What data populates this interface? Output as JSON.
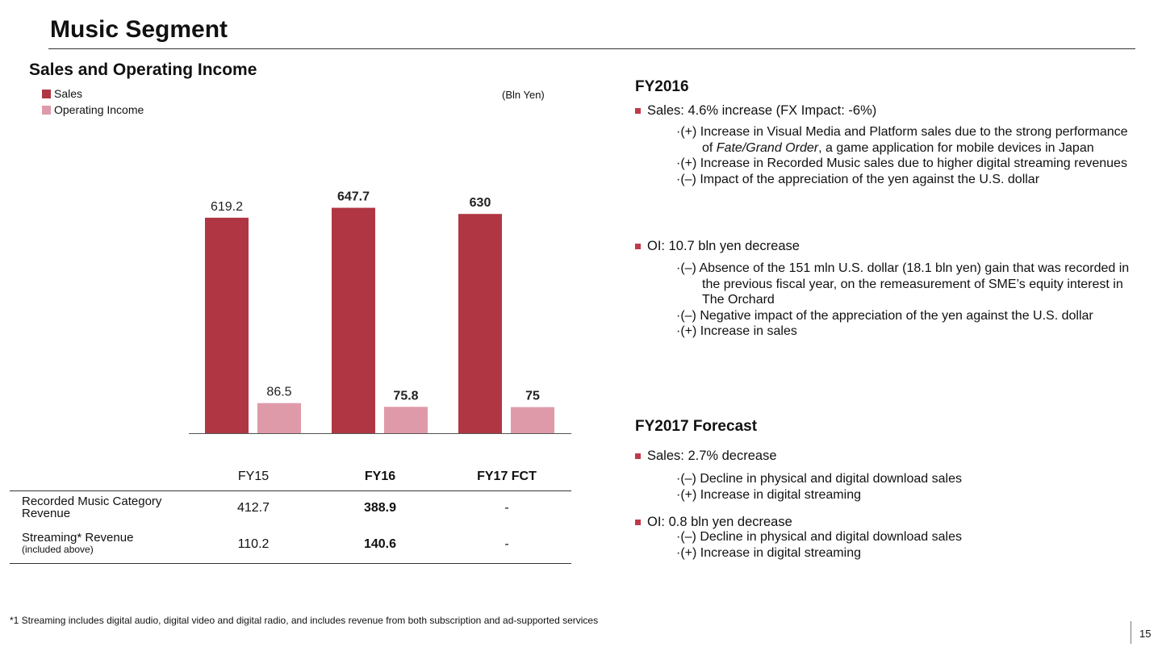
{
  "page": {
    "title": "Music Segment",
    "page_number": "15",
    "footnote": "*1 Streaming includes digital audio, digital video and digital radio, and includes revenue from both subscription and ad-supported services"
  },
  "chart_data": {
    "type": "bar",
    "title": "Sales and Operating Income",
    "unit": "(Bln Yen)",
    "categories": [
      "FY15",
      "FY16",
      "FY17 FCT"
    ],
    "series": [
      {
        "name": "Sales",
        "color": "#b03643",
        "values": [
          619.2,
          647.7,
          630
        ],
        "labels": [
          "619.2",
          "647.7",
          "630"
        ]
      },
      {
        "name": "Operating Income",
        "color": "#de9aa9",
        "values": [
          86.5,
          75.8,
          75
        ],
        "labels": [
          "86.5",
          "75.8",
          "75"
        ]
      }
    ],
    "bold_categories": [
      false,
      true,
      true
    ],
    "ylim": [
      0,
      700
    ],
    "grid": false,
    "legend": "top-left"
  },
  "table": {
    "rows": [
      {
        "label": "Recorded Music Category Revenue",
        "sublabel": "",
        "values": [
          "412.7",
          "388.9",
          "-"
        ]
      },
      {
        "label": "Streaming* Revenue",
        "sublabel": "(included above)",
        "values": [
          "110.2",
          "140.6",
          "-"
        ]
      }
    ]
  },
  "fy2016": {
    "heading": "FY2016",
    "sales_bullet": "Sales: 4.6% increase (FX Impact:  -6%)",
    "sales_items": [
      "·(+) Increase in Visual Media and Platform sales due to the strong performance of Fate/Grand Order, a game application for mobile devices in Japan",
      "·(+) Increase in Recorded Music sales due to higher digital streaming revenues",
      "·(–) Impact of the appreciation of the yen against the U.S. dollar"
    ],
    "oi_bullet": "OI: 10.7 bln yen decrease",
    "oi_items": [
      "·(–) Absence of the 151 mln U.S. dollar (18.1 bln yen) gain that was recorded in the previous fiscal year, on the remeasurement of SME’s equity interest in The Orchard",
      "·(–) Negative impact of the appreciation of the yen against the U.S. dollar",
      "·(+) Increase in sales"
    ]
  },
  "fy2017": {
    "heading": "FY2017 Forecast",
    "sales_bullet": "Sales: 2.7% decrease",
    "sales_items": [
      "·(–) Decline in physical and digital download sales",
      "·(+) Increase in digital streaming"
    ],
    "oi_bullet": "OI: 0.8 bln yen decrease",
    "oi_items": [
      "·(–) Decline in physical and digital download sales",
      "·(+) Increase in digital streaming"
    ]
  }
}
